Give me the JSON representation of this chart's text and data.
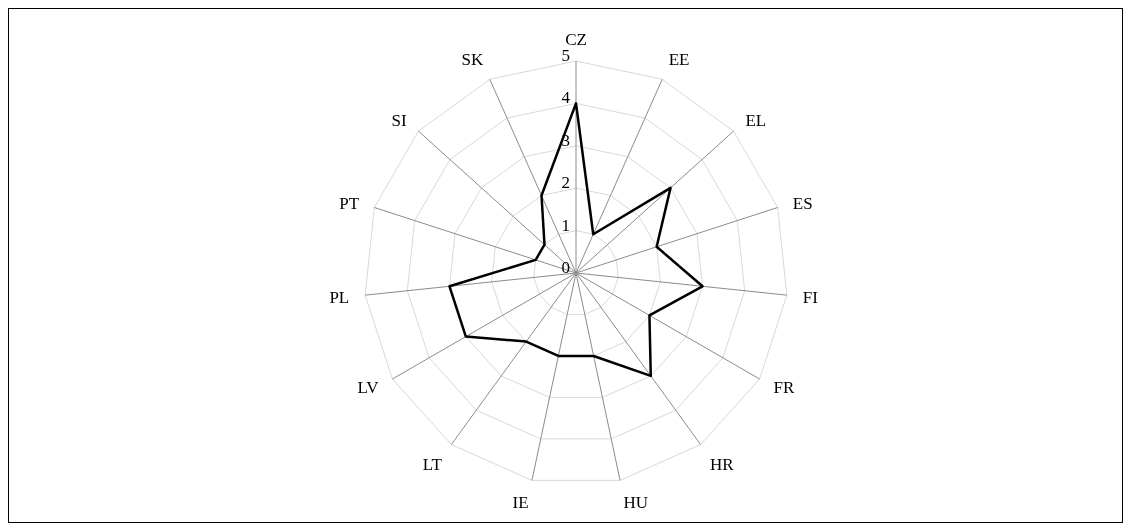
{
  "chart_data": {
    "type": "radar",
    "categories": [
      "CZ",
      "EE",
      "EL",
      "ES",
      "FI",
      "FR",
      "HR",
      "HU",
      "IE",
      "LT",
      "LV",
      "PL",
      "PT",
      "SI",
      "SK"
    ],
    "series": [
      {
        "color": "#000000",
        "values": [
          4,
          1,
          3,
          2,
          3,
          2,
          3,
          2,
          2,
          2,
          3,
          3,
          1,
          1,
          2
        ]
      }
    ],
    "ylim": [
      0,
      5
    ],
    "yticks": [
      0,
      1,
      2,
      3,
      4,
      5
    ],
    "grid": true,
    "marker": "none",
    "legend": false
  }
}
